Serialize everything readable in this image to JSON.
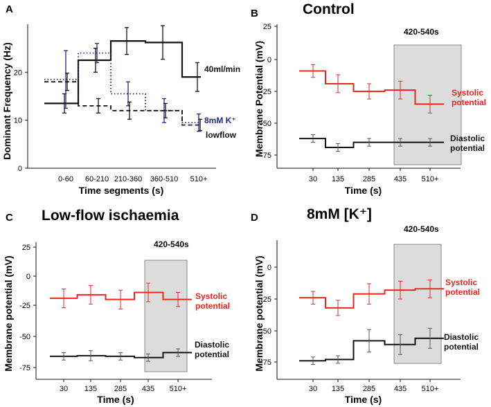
{
  "figure_colors": {
    "systolic": "#e8281e",
    "diastolic": "#111111",
    "k_series": "#1f2a80",
    "window_fill": "#dcdcdc",
    "window_edge": "#888888"
  },
  "chart_data": [
    {
      "id": "A",
      "type": "line",
      "label": "A",
      "title": "",
      "xlabel": "Time segments (s)",
      "ylabel": "Dominant Frequency (Hz)",
      "ylim": [
        0,
        30
      ],
      "yticks": [
        0,
        10,
        20
      ],
      "categories": [
        "0-60",
        "60-210",
        "210-360",
        "360-510",
        "510+"
      ],
      "series": [
        {
          "name": "40ml/min",
          "label": "40ml/min",
          "style": "solid",
          "color": "#111111",
          "values": [
            13.5,
            22.5,
            26.5,
            26.2,
            19.0
          ],
          "errors": [
            2.0,
            2.5,
            2.8,
            3.5,
            3.0
          ]
        },
        {
          "name": "8mM K+",
          "label": "8mM K⁺",
          "style": "dotted",
          "color": "#1f2a80",
          "values": [
            18.5,
            24.0,
            15.5,
            12.0,
            9.5
          ],
          "errors": [
            6.0,
            2.0,
            2.5,
            2.5,
            1.8
          ]
        },
        {
          "name": "lowflow",
          "label": "lowflow",
          "style": "dashed",
          "color": "#111111",
          "values": [
            18.0,
            13.0,
            12.0,
            12.0,
            9.0
          ],
          "errors": [
            1.8,
            1.5,
            1.8,
            1.5,
            1.2
          ]
        }
      ]
    },
    {
      "id": "B",
      "type": "line",
      "label": "B",
      "title": "Control",
      "xlabel": "Time (s)",
      "ylabel": "Membrane Potential (mV)",
      "ylim": [
        -82,
        30
      ],
      "yticks": [
        25,
        0,
        -25,
        -50,
        -75
      ],
      "categories": [
        "30",
        "135",
        "285",
        "435",
        "510+"
      ],
      "window_label": "420-540s",
      "window_range": [
        3,
        4.5
      ],
      "series": [
        {
          "name": "Systolic potential",
          "label_lines": [
            "Systolic",
            "potential"
          ],
          "color": "#e8281e",
          "values": [
            -9,
            -19,
            -25,
            -24,
            -35
          ],
          "errors": [
            5,
            7,
            6,
            7,
            7
          ]
        },
        {
          "name": "Diastolic potential",
          "label_lines": [
            "Diastolic",
            "potential"
          ],
          "color": "#111111",
          "values": [
            -62,
            -69,
            -65,
            -65,
            -65
          ],
          "errors": [
            3,
            3,
            3,
            3,
            3
          ]
        }
      ]
    },
    {
      "id": "C",
      "type": "line",
      "label": "C",
      "title": "Low-flow ischaemia",
      "xlabel": "Time (s)",
      "ylabel": "Membrane potential (mV)",
      "ylim": [
        -78,
        30
      ],
      "yticks": [
        25,
        0,
        -25,
        -50,
        -75
      ],
      "categories": [
        "30",
        "135",
        "285",
        "435",
        "510+"
      ],
      "window_label": "420-540s",
      "window_range": [
        3,
        4.5
      ],
      "series": [
        {
          "name": "Systolic potential",
          "label_lines": [
            "Systolic",
            "potential"
          ],
          "color": "#e8281e",
          "values": [
            -19,
            -16,
            -20,
            -14,
            -20
          ],
          "errors": [
            8,
            8,
            8,
            8,
            6
          ]
        },
        {
          "name": "Diastolic potential",
          "label_lines": [
            "Diastolic",
            "potential"
          ],
          "color": "#111111",
          "values": [
            -66,
            -65.5,
            -66,
            -67,
            -63
          ],
          "errors": [
            3,
            4,
            3,
            3,
            3
          ]
        }
      ]
    },
    {
      "id": "D",
      "type": "line",
      "label": "D",
      "title": "8mM [K⁺]",
      "xlabel": "Time (s)",
      "ylabel": "Membrane potential (mV)",
      "ylim": [
        -80,
        25
      ],
      "yticks": [
        0,
        -25,
        -50,
        -75
      ],
      "categories": [
        "30",
        "135",
        "285",
        "435",
        "510+"
      ],
      "window_label": "420-540s",
      "window_range": [
        3,
        4.5
      ],
      "series": [
        {
          "name": "Systolic potential",
          "label_lines": [
            "Systolic",
            "potential"
          ],
          "color": "#e8281e",
          "values": [
            -24,
            -32,
            -21,
            -18,
            -17
          ],
          "errors": [
            5,
            6,
            8,
            7,
            7
          ]
        },
        {
          "name": "Diastolic potential",
          "label_lines": [
            "Diastolic",
            "potential"
          ],
          "color": "#111111",
          "values": [
            -74,
            -73,
            -58,
            -61,
            -56
          ],
          "errors": [
            3,
            3,
            9,
            8,
            8
          ]
        }
      ]
    }
  ]
}
